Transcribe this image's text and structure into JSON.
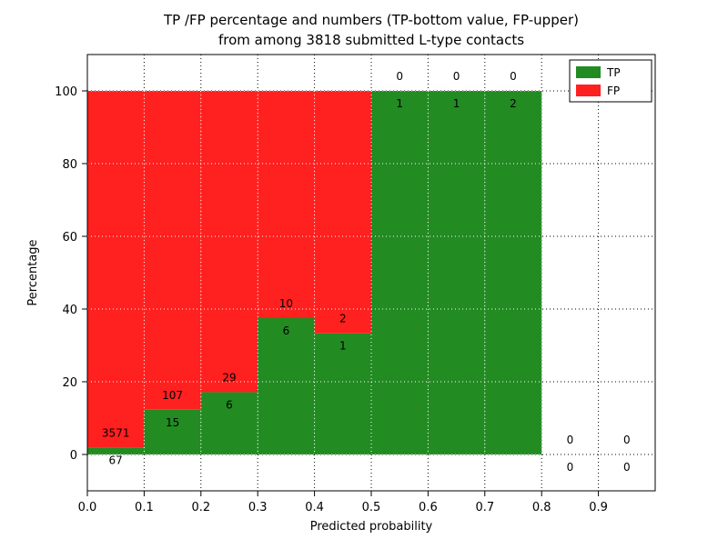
{
  "chart_data": {
    "type": "bar",
    "stacked": true,
    "title": "TP /FP percentage and numbers (TP-bottom value, FP-upper)",
    "subtitle": "from among 3818 submitted L-type contacts",
    "xlabel": "Predicted probability",
    "ylabel": "Percentage",
    "xlim": [
      0.0,
      1.0
    ],
    "ylim": [
      -10,
      110
    ],
    "xticks": [
      "0.0",
      "0.1",
      "0.2",
      "0.3",
      "0.4",
      "0.5",
      "0.6",
      "0.7",
      "0.8",
      "0.9"
    ],
    "yticks": [
      0,
      20,
      40,
      60,
      80,
      100
    ],
    "bin_width": 0.1,
    "grid": true,
    "legend_position": "upper right",
    "total_contacts": 3818,
    "bins": [
      {
        "x0": 0.0,
        "tp_count": 67,
        "fp_count": 3571,
        "tp_pct": 1.84,
        "fp_pct": 98.16
      },
      {
        "x0": 0.1,
        "tp_count": 15,
        "fp_count": 107,
        "tp_pct": 12.3,
        "fp_pct": 87.7
      },
      {
        "x0": 0.2,
        "tp_count": 6,
        "fp_count": 29,
        "tp_pct": 17.14,
        "fp_pct": 82.86
      },
      {
        "x0": 0.3,
        "tp_count": 6,
        "fp_count": 10,
        "tp_pct": 37.5,
        "fp_pct": 62.5
      },
      {
        "x0": 0.4,
        "tp_count": 1,
        "fp_count": 2,
        "tp_pct": 33.33,
        "fp_pct": 66.67
      },
      {
        "x0": 0.5,
        "tp_count": 1,
        "fp_count": 0,
        "tp_pct": 100,
        "fp_pct": 0
      },
      {
        "x0": 0.6,
        "tp_count": 1,
        "fp_count": 0,
        "tp_pct": 100,
        "fp_pct": 0
      },
      {
        "x0": 0.7,
        "tp_count": 2,
        "fp_count": 0,
        "tp_pct": 100,
        "fp_pct": 0
      },
      {
        "x0": 0.8,
        "tp_count": 0,
        "fp_count": 0,
        "tp_pct": 0,
        "fp_pct": 0
      },
      {
        "x0": 0.9,
        "tp_count": 0,
        "fp_count": 0,
        "tp_pct": 0,
        "fp_pct": 0
      }
    ],
    "colors": {
      "tp": "#228b22",
      "fp": "#ff2020"
    },
    "legend": [
      {
        "label": "TP",
        "color": "#228b22"
      },
      {
        "label": "FP",
        "color": "#ff2020"
      }
    ]
  }
}
